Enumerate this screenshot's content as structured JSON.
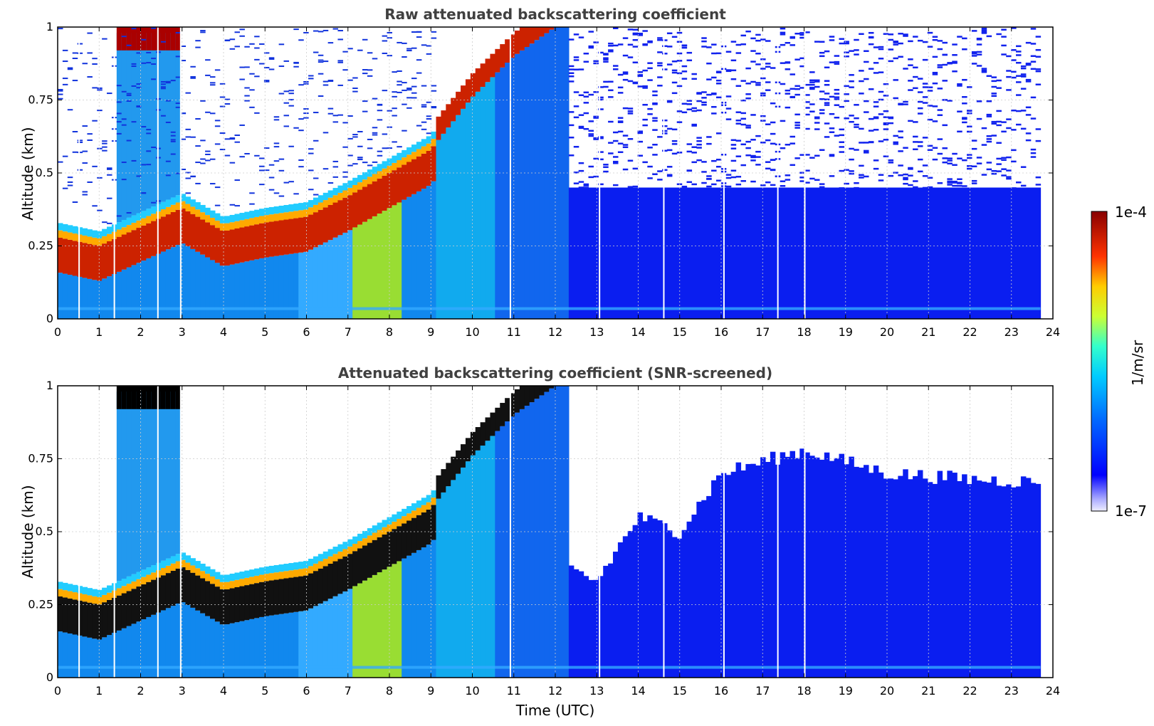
{
  "chart_data": [
    {
      "type": "heatmap",
      "title": "Raw attenuated backscattering coefficient",
      "xlabel": "",
      "ylabel": "Altitude (km)",
      "xlim": [
        0,
        24
      ],
      "ylim": [
        0,
        1
      ],
      "x_ticks": [
        "0",
        "1",
        "2",
        "3",
        "4",
        "5",
        "6",
        "7",
        "8",
        "9",
        "10",
        "11",
        "12",
        "13",
        "14",
        "15",
        "16",
        "17",
        "18",
        "19",
        "20",
        "21",
        "22",
        "23",
        "24"
      ],
      "y_ticks": [
        "0",
        "0.25",
        "0.5",
        "0.75",
        "1"
      ],
      "data_end_hour": 23.7,
      "grid": true,
      "features": {
        "boundary_layer_aerosol_top_km": [
          {
            "x": 0,
            "y": 0.28
          },
          {
            "x": 1,
            "y": 0.25
          },
          {
            "x": 3,
            "y": 0.38
          },
          {
            "x": 4,
            "y": 0.3
          },
          {
            "x": 5,
            "y": 0.33
          },
          {
            "x": 6,
            "y": 0.35
          },
          {
            "x": 7,
            "y": 0.42
          },
          {
            "x": 8,
            "y": 0.5
          },
          {
            "x": 9,
            "y": 0.58
          },
          {
            "x": 10,
            "y": 0.76
          },
          {
            "x": 11,
            "y": 0.9
          },
          {
            "x": 12,
            "y": 1.0
          }
        ],
        "cloud_top_layer_hours": [
          1.5,
          2.8
        ],
        "noise_region_start_hour": 9.1
      }
    },
    {
      "type": "heatmap",
      "title": "Attenuated backscattering coefficient (SNR-screened)",
      "xlabel": "Time (UTC)",
      "ylabel": "Altitude (km)",
      "xlim": [
        0,
        24
      ],
      "ylim": [
        0,
        1
      ],
      "x_ticks": [
        "0",
        "1",
        "2",
        "3",
        "4",
        "5",
        "6",
        "7",
        "8",
        "9",
        "10",
        "11",
        "12",
        "13",
        "14",
        "15",
        "16",
        "17",
        "18",
        "19",
        "20",
        "21",
        "22",
        "23",
        "24"
      ],
      "y_ticks": [
        "0",
        "0.25",
        "0.5",
        "0.75",
        "1"
      ],
      "data_end_hour": 23.7,
      "grid": true,
      "features": {
        "screened_top_km": [
          {
            "x": 12.2,
            "y": 0.38
          },
          {
            "x": 13,
            "y": 0.33
          },
          {
            "x": 14,
            "y": 0.55
          },
          {
            "x": 15,
            "y": 0.5
          },
          {
            "x": 16,
            "y": 0.7
          },
          {
            "x": 17,
            "y": 0.74
          },
          {
            "x": 18,
            "y": 0.78
          },
          {
            "x": 20,
            "y": 0.7
          },
          {
            "x": 22,
            "y": 0.68
          },
          {
            "x": 23.7,
            "y": 0.67
          }
        ]
      }
    }
  ],
  "colorbar": {
    "label": "1/m/sr",
    "max_label": "1e-4",
    "min_label": "1e-7",
    "scale": "log",
    "colormap": "jet"
  }
}
